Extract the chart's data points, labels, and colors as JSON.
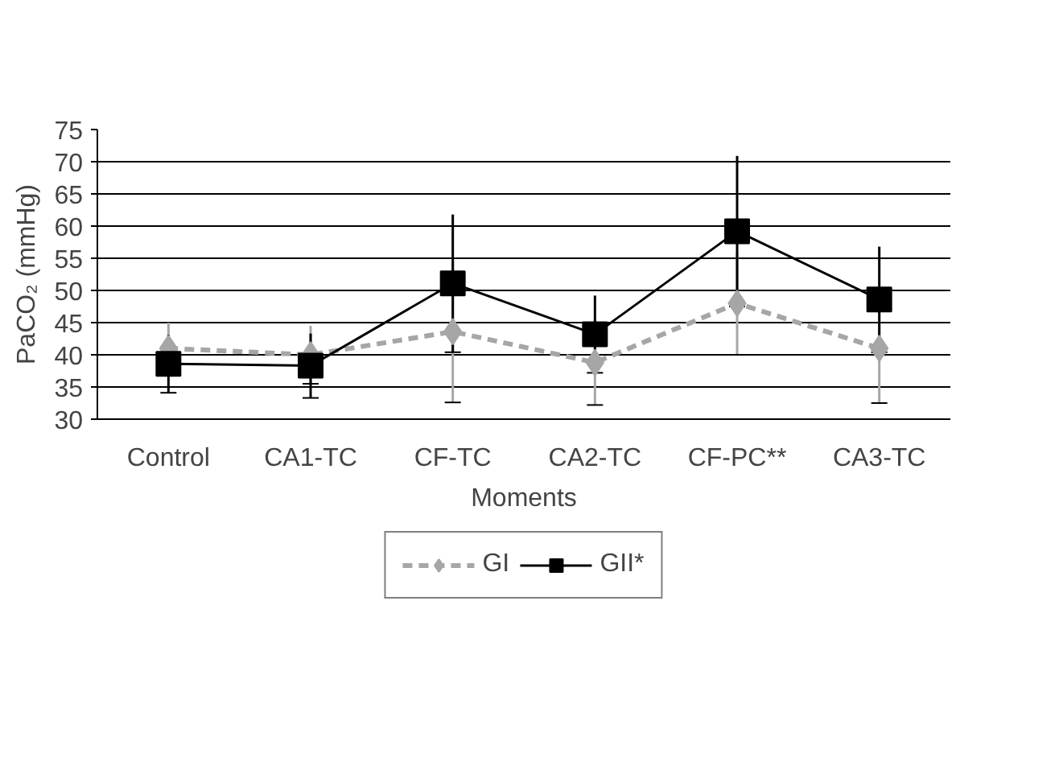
{
  "chart_data": {
    "type": "line",
    "xlabel": "Moments",
    "ylabel": "PaCO₂ (mmHg)",
    "categories": [
      "Control",
      "CA1-TC",
      "CF-TC",
      "CA2-TC",
      "CF-PC**",
      "CA3-TC"
    ],
    "series": [
      {
        "name": "GI",
        "color": "#a6a6a6",
        "marker": "diamond",
        "line_style": "dashed",
        "values": [
          41,
          40,
          43.6,
          38.8,
          48,
          41
        ],
        "errors": [
          4,
          4.5,
          11,
          6.6,
          8,
          8.5
        ]
      },
      {
        "name": "GII*",
        "color": "#000000",
        "marker": "square",
        "line_style": "solid",
        "values": [
          38.6,
          38.3,
          51.1,
          43.2,
          59.2,
          48.6
        ],
        "errors": [
          4.5,
          5,
          10.7,
          6,
          11.7,
          8.2
        ]
      }
    ],
    "ylim": [
      30,
      75
    ],
    "yticks": [
      30,
      35,
      40,
      45,
      50,
      55,
      60,
      65,
      70,
      75
    ],
    "grid": "y",
    "legend": "bottom"
  }
}
